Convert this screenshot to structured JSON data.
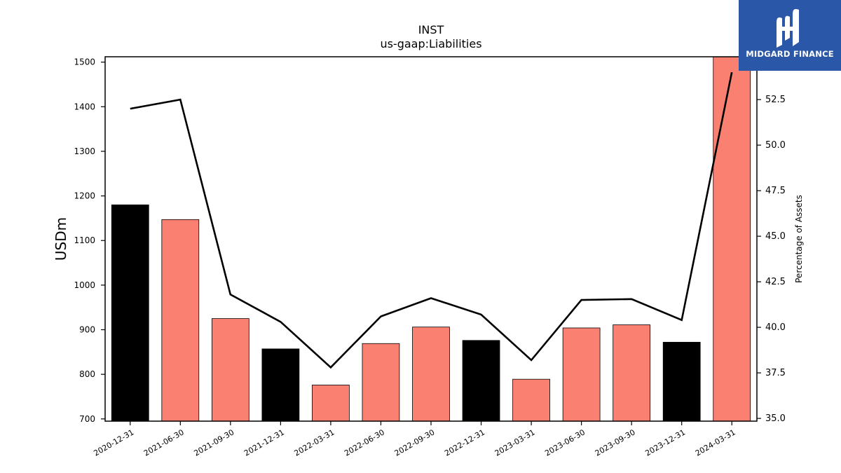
{
  "chart_data": {
    "type": "bar",
    "title": "INST",
    "subtitle": "us-gaap:Liabilities",
    "ylabel": "USDm",
    "y2label": "Percentage of Assets",
    "categories": [
      "2020-12-31",
      "2021-06-30",
      "2021-09-30",
      "2021-12-31",
      "2022-03-31",
      "2022-06-30",
      "2022-09-30",
      "2022-12-31",
      "2023-03-31",
      "2023-06-30",
      "2023-09-30",
      "2023-12-31",
      "2024-03-31"
    ],
    "series": [
      {
        "type": "bar",
        "values": [
          1180,
          1147,
          925,
          857,
          776,
          869,
          906,
          876,
          789,
          904,
          911,
          872,
          1512
        ],
        "colors": [
          "#000000",
          "#fa8072",
          "#fa8072",
          "#000000",
          "#fa8072",
          "#fa8072",
          "#fa8072",
          "#000000",
          "#fa8072",
          "#fa8072",
          "#fa8072",
          "#000000",
          "#fa8072"
        ]
      },
      {
        "type": "line",
        "axis": "right",
        "color": "#000000",
        "values": [
          52.0,
          52.5,
          41.8,
          40.3,
          37.8,
          40.6,
          41.6,
          40.7,
          38.2,
          41.5,
          41.55,
          40.4,
          54.0
        ]
      }
    ],
    "ylim": [
      695,
      1512
    ],
    "y2lim": [
      34.85,
      54.85
    ],
    "yticks": [
      "700",
      "800",
      "900",
      "1000",
      "1100",
      "1200",
      "1300",
      "1400",
      "1500"
    ],
    "y2ticks": [
      "35.0",
      "37.5",
      "40.0",
      "42.5",
      "45.0",
      "47.5",
      "50.0",
      "52.5"
    ],
    "grid": false
  },
  "logo": {
    "text": "MIDGARD FINANCE",
    "background": "#2b57a8"
  }
}
